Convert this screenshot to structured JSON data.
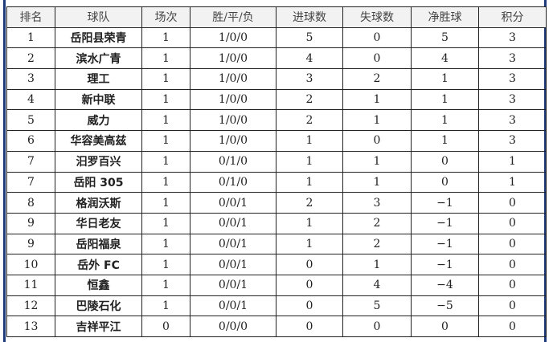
{
  "headers": [
    "排名",
    "球队",
    "场次",
    "胜/平/负",
    "进球数",
    "失球数",
    "净胜球",
    "积分"
  ],
  "rows": [
    [
      "1",
      "岳阳县荣青",
      "1",
      "1/0/0",
      "5",
      "0",
      "5",
      "3"
    ],
    [
      "2",
      "滨水广青",
      "1",
      "1/0/0",
      "4",
      "0",
      "4",
      "3"
    ],
    [
      "3",
      "理工",
      "1",
      "1/0/0",
      "3",
      "2",
      "1",
      "3"
    ],
    [
      "4",
      "新中联",
      "1",
      "1/0/0",
      "2",
      "1",
      "1",
      "3"
    ],
    [
      "5",
      "威力",
      "1",
      "1/0/0",
      "2",
      "1",
      "1",
      "3"
    ],
    [
      "6",
      "华容美高兹",
      "1",
      "1/0/0",
      "1",
      "0",
      "1",
      "3"
    ],
    [
      "7",
      "汨罗百兴",
      "1",
      "0/1/0",
      "1",
      "1",
      "0",
      "1"
    ],
    [
      "7",
      "岳阳 305",
      "1",
      "0/1/0",
      "1",
      "1",
      "0",
      "1"
    ],
    [
      "8",
      "格润沃斯",
      "1",
      "0/0/1",
      "2",
      "3",
      "−1",
      "0"
    ],
    [
      "9",
      "华日老友",
      "1",
      "0/0/1",
      "1",
      "2",
      "−1",
      "0"
    ],
    [
      "9",
      "岳阳福泉",
      "1",
      "0/0/1",
      "1",
      "2",
      "−1",
      "0"
    ],
    [
      "10",
      "岳外 FC",
      "1",
      "0/0/1",
      "0",
      "1",
      "−1",
      "0"
    ],
    [
      "11",
      "恒鑫",
      "1",
      "0/0/1",
      "0",
      "4",
      "−4",
      "0"
    ],
    [
      "12",
      "巴陵石化",
      "1",
      "0/0/1",
      "0",
      "5",
      "−5",
      "0"
    ],
    [
      "13",
      "吉祥平江",
      "0",
      "0/0/0",
      "0",
      "0",
      "0",
      "0"
    ]
  ]
}
